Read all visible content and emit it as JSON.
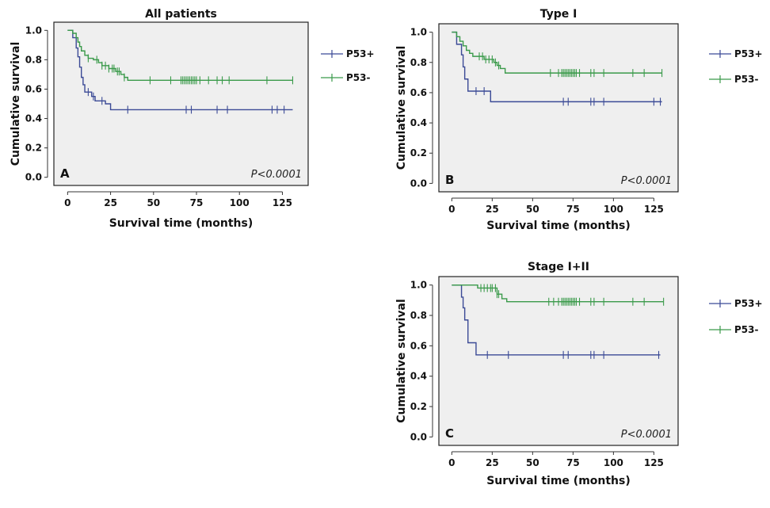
{
  "colors": {
    "p53_pos": "#3b4a96",
    "p53_neg": "#3a9a4a"
  },
  "chart_data": [
    {
      "type": "line",
      "title": "All patients",
      "panel": "A",
      "p_value": "P<0.0001",
      "xlabel": "Survival time (months)",
      "ylabel": "Cumulative survival",
      "xlim": [
        -8,
        140
      ],
      "ylim": [
        0,
        1.0
      ],
      "xticks": [
        0,
        25,
        50,
        75,
        100,
        125
      ],
      "yticks": [
        "0.0",
        "0.2",
        "0.4",
        "0.6",
        "0.8",
        "1.0"
      ],
      "legend": [
        "P53+",
        "P53-"
      ],
      "series": [
        {
          "name": "P53+",
          "steps": [
            [
              0,
              1.0
            ],
            [
              3,
              0.95
            ],
            [
              5,
              0.88
            ],
            [
              6,
              0.82
            ],
            [
              7,
              0.75
            ],
            [
              8,
              0.68
            ],
            [
              9,
              0.63
            ],
            [
              10,
              0.58
            ],
            [
              14,
              0.55
            ],
            [
              16,
              0.52
            ],
            [
              22,
              0.5
            ],
            [
              25,
              0.46
            ],
            [
              131,
              0.46
            ]
          ],
          "censored": [
            12,
            15,
            20,
            35,
            69,
            72,
            87,
            93,
            119,
            122,
            126
          ]
        },
        {
          "name": "P53-",
          "steps": [
            [
              0,
              1.0
            ],
            [
              3,
              0.98
            ],
            [
              5,
              0.95
            ],
            [
              6,
              0.92
            ],
            [
              7,
              0.89
            ],
            [
              8,
              0.86
            ],
            [
              10,
              0.83
            ],
            [
              12,
              0.81
            ],
            [
              15,
              0.8
            ],
            [
              18,
              0.78
            ],
            [
              20,
              0.76
            ],
            [
              24,
              0.74
            ],
            [
              28,
              0.72
            ],
            [
              31,
              0.7
            ],
            [
              33,
              0.68
            ],
            [
              35,
              0.66
            ],
            [
              131,
              0.66
            ]
          ],
          "censored": [
            12,
            17,
            20,
            22,
            24,
            26,
            27,
            29,
            30,
            33,
            48,
            60,
            66,
            67,
            68,
            69,
            70,
            71,
            72,
            73,
            74,
            75,
            77,
            82,
            87,
            90,
            94,
            116,
            131
          ]
        }
      ]
    },
    {
      "type": "line",
      "title": "Type I",
      "panel": "B",
      "p_value": "P<0.0001",
      "xlabel": "Survival time (months)",
      "ylabel": "Cumulative survival",
      "xlim": [
        -8,
        140
      ],
      "ylim": [
        0,
        1.0
      ],
      "xticks": [
        0,
        25,
        50,
        75,
        100,
        125
      ],
      "yticks": [
        "0.0",
        "0.2",
        "0.4",
        "0.6",
        "0.8",
        "1.0"
      ],
      "legend": [
        "P53+",
        "P53-"
      ],
      "series": [
        {
          "name": "P53+",
          "steps": [
            [
              0,
              1.0
            ],
            [
              3,
              0.92
            ],
            [
              6,
              0.85
            ],
            [
              7,
              0.77
            ],
            [
              8,
              0.69
            ],
            [
              10,
              0.61
            ],
            [
              24,
              0.54
            ],
            [
              130,
              0.54
            ]
          ],
          "censored": [
            15,
            20,
            69,
            72,
            86,
            88,
            94,
            125,
            129
          ]
        },
        {
          "name": "P53-",
          "steps": [
            [
              0,
              1.0
            ],
            [
              3,
              0.97
            ],
            [
              5,
              0.94
            ],
            [
              7,
              0.91
            ],
            [
              9,
              0.88
            ],
            [
              11,
              0.86
            ],
            [
              13,
              0.84
            ],
            [
              20,
              0.82
            ],
            [
              26,
              0.8
            ],
            [
              28,
              0.78
            ],
            [
              30,
              0.76
            ],
            [
              33,
              0.73
            ],
            [
              130,
              0.73
            ]
          ],
          "censored": [
            17,
            19,
            21,
            23,
            25,
            27,
            29,
            61,
            66,
            68,
            69,
            70,
            71,
            72,
            73,
            74,
            75,
            76,
            77,
            79,
            86,
            88,
            94,
            112,
            119,
            130
          ]
        }
      ]
    },
    {
      "type": "line",
      "title": "Stage I+II",
      "panel": "C",
      "p_value": "P<0.0001",
      "xlabel": "Survival time (months)",
      "ylabel": "Cumulative survival",
      "xlim": [
        -8,
        140
      ],
      "ylim": [
        0,
        1.0
      ],
      "xticks": [
        0,
        25,
        50,
        75,
        100,
        125
      ],
      "yticks": [
        "0.0",
        "0.2",
        "0.4",
        "0.6",
        "0.8",
        "1.0"
      ],
      "legend": [
        "P53+",
        "P53-"
      ],
      "series": [
        {
          "name": "P53+",
          "steps": [
            [
              0,
              1.0
            ],
            [
              6,
              0.92
            ],
            [
              7,
              0.85
            ],
            [
              8,
              0.77
            ],
            [
              10,
              0.62
            ],
            [
              15,
              0.54
            ],
            [
              129,
              0.54
            ]
          ],
          "censored": [
            22,
            35,
            69,
            72,
            86,
            88,
            94,
            128
          ]
        },
        {
          "name": "P53-",
          "steps": [
            [
              0,
              1.0
            ],
            [
              16,
              0.98
            ],
            [
              28,
              0.94
            ],
            [
              31,
              0.91
            ],
            [
              34,
              0.89
            ],
            [
              131,
              0.89
            ]
          ],
          "censored": [
            18,
            20,
            22,
            24,
            25,
            27,
            28,
            29,
            60,
            63,
            66,
            68,
            69,
            70,
            71,
            72,
            73,
            74,
            75,
            76,
            77,
            79,
            86,
            88,
            94,
            112,
            119,
            131
          ]
        }
      ]
    }
  ]
}
